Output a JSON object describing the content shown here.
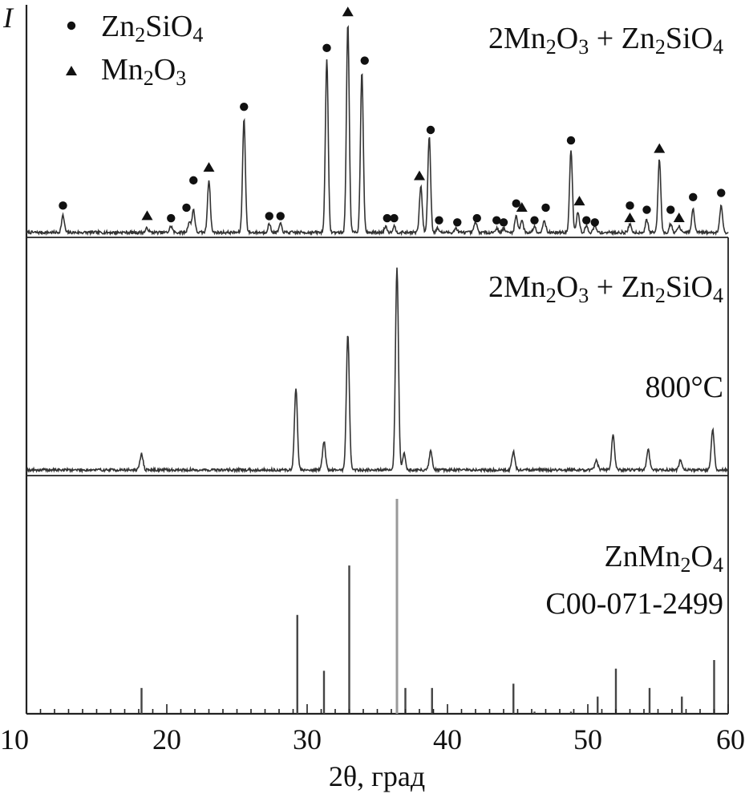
{
  "chart_data": [
    {
      "type": "line",
      "panel": "top",
      "ylabel": "I",
      "label_parts": [
        "2Mn",
        "2",
        "O",
        "3",
        " + Zn",
        "2",
        "SiO",
        "4"
      ],
      "legend": {
        "entries": [
          {
            "marker": "circle",
            "parts": [
              "Zn",
              "2",
              "SiO",
              "4"
            ]
          },
          {
            "marker": "triangle",
            "parts": [
              "Mn",
              "2",
              "O",
              "3"
            ]
          }
        ],
        "placement": "top-left"
      },
      "peaks": [
        {
          "x": 12.6,
          "h": 0.08
        },
        {
          "x": 18.6,
          "h": 0.02
        },
        {
          "x": 20.3,
          "h": 0.03
        },
        {
          "x": 21.6,
          "h": 0.05
        },
        {
          "x": 21.9,
          "h": 0.11
        },
        {
          "x": 23.0,
          "h": 0.25
        },
        {
          "x": 25.5,
          "h": 0.54
        },
        {
          "x": 27.3,
          "h": 0.04
        },
        {
          "x": 28.1,
          "h": 0.04
        },
        {
          "x": 31.4,
          "h": 0.83
        },
        {
          "x": 32.9,
          "h": 1.0
        },
        {
          "x": 33.9,
          "h": 0.77
        },
        {
          "x": 35.6,
          "h": 0.03
        },
        {
          "x": 36.2,
          "h": 0.03
        },
        {
          "x": 38.1,
          "h": 0.22
        },
        {
          "x": 38.7,
          "h": 0.46
        },
        {
          "x": 39.3,
          "h": 0.02
        },
        {
          "x": 40.6,
          "h": 0.02
        },
        {
          "x": 42.0,
          "h": 0.05
        },
        {
          "x": 43.5,
          "h": 0.02
        },
        {
          "x": 44.0,
          "h": 0.02
        },
        {
          "x": 44.9,
          "h": 0.08
        },
        {
          "x": 45.3,
          "h": 0.06
        },
        {
          "x": 46.2,
          "h": 0.03
        },
        {
          "x": 46.9,
          "h": 0.06
        },
        {
          "x": 48.8,
          "h": 0.39
        },
        {
          "x": 49.3,
          "h": 0.1
        },
        {
          "x": 49.9,
          "h": 0.03
        },
        {
          "x": 50.5,
          "h": 0.03
        },
        {
          "x": 53.0,
          "h": 0.04
        },
        {
          "x": 54.2,
          "h": 0.06
        },
        {
          "x": 55.1,
          "h": 0.35
        },
        {
          "x": 55.9,
          "h": 0.04
        },
        {
          "x": 56.5,
          "h": 0.03
        },
        {
          "x": 57.5,
          "h": 0.11
        },
        {
          "x": 59.5,
          "h": 0.13
        }
      ],
      "markers": [
        {
          "x": 12.6,
          "h": 0.14,
          "type": "circle"
        },
        {
          "x": 18.6,
          "h": 0.09,
          "type": "triangle"
        },
        {
          "x": 20.3,
          "h": 0.08,
          "type": "circle"
        },
        {
          "x": 21.4,
          "h": 0.13,
          "type": "circle"
        },
        {
          "x": 21.9,
          "h": 0.26,
          "type": "circle"
        },
        {
          "x": 23.0,
          "h": 0.32,
          "type": "triangle"
        },
        {
          "x": 25.5,
          "h": 0.61,
          "type": "circle"
        },
        {
          "x": 27.3,
          "h": 0.09,
          "type": "circle"
        },
        {
          "x": 28.1,
          "h": 0.09,
          "type": "circle"
        },
        {
          "x": 31.4,
          "h": 0.89,
          "type": "circle"
        },
        {
          "x": 32.9,
          "h": 1.06,
          "type": "triangle"
        },
        {
          "x": 34.1,
          "h": 0.83,
          "type": "circle"
        },
        {
          "x": 35.7,
          "h": 0.08,
          "type": "circle"
        },
        {
          "x": 36.2,
          "h": 0.08,
          "type": "circle"
        },
        {
          "x": 38.0,
          "h": 0.28,
          "type": "triangle"
        },
        {
          "x": 38.8,
          "h": 0.5,
          "type": "circle"
        },
        {
          "x": 39.4,
          "h": 0.07,
          "type": "circle"
        },
        {
          "x": 40.7,
          "h": 0.06,
          "type": "circle"
        },
        {
          "x": 42.1,
          "h": 0.08,
          "type": "circle"
        },
        {
          "x": 43.5,
          "h": 0.07,
          "type": "circle"
        },
        {
          "x": 44.0,
          "h": 0.06,
          "type": "circle"
        },
        {
          "x": 44.9,
          "h": 0.15,
          "type": "circle"
        },
        {
          "x": 45.3,
          "h": 0.13,
          "type": "triangle"
        },
        {
          "x": 46.2,
          "h": 0.07,
          "type": "circle"
        },
        {
          "x": 47.0,
          "h": 0.13,
          "type": "circle"
        },
        {
          "x": 48.8,
          "h": 0.45,
          "type": "circle"
        },
        {
          "x": 49.4,
          "h": 0.16,
          "type": "triangle"
        },
        {
          "x": 49.9,
          "h": 0.07,
          "type": "circle"
        },
        {
          "x": 50.5,
          "h": 0.06,
          "type": "circle"
        },
        {
          "x": 53.0,
          "h": 0.08,
          "type": "triangle"
        },
        {
          "x": 53.0,
          "h": 0.14,
          "type": "circle"
        },
        {
          "x": 54.2,
          "h": 0.12,
          "type": "circle"
        },
        {
          "x": 55.1,
          "h": 0.41,
          "type": "triangle"
        },
        {
          "x": 55.9,
          "h": 0.12,
          "type": "circle"
        },
        {
          "x": 56.5,
          "h": 0.08,
          "type": "triangle"
        },
        {
          "x": 57.5,
          "h": 0.18,
          "type": "circle"
        },
        {
          "x": 59.5,
          "h": 0.2,
          "type": "circle"
        }
      ]
    },
    {
      "type": "line",
      "panel": "middle",
      "label_parts": [
        "2Mn",
        "2",
        "O",
        "3",
        " + Zn",
        "2",
        "SiO",
        "4"
      ],
      "label2": "800°C",
      "peaks": [
        {
          "x": 18.2,
          "h": 0.08
        },
        {
          "x": 29.2,
          "h": 0.4
        },
        {
          "x": 31.2,
          "h": 0.14
        },
        {
          "x": 32.9,
          "h": 0.67
        },
        {
          "x": 36.4,
          "h": 1.0
        },
        {
          "x": 36.9,
          "h": 0.08
        },
        {
          "x": 38.8,
          "h": 0.09
        },
        {
          "x": 44.7,
          "h": 0.09
        },
        {
          "x": 50.6,
          "h": 0.05
        },
        {
          "x": 51.8,
          "h": 0.17
        },
        {
          "x": 54.3,
          "h": 0.1
        },
        {
          "x": 56.6,
          "h": 0.05
        },
        {
          "x": 58.9,
          "h": 0.2
        }
      ]
    },
    {
      "type": "bar",
      "panel": "bottom",
      "label_parts": [
        "ZnMn",
        "2",
        "O",
        "4"
      ],
      "label2": "C00-071-2499",
      "lines": [
        {
          "x": 18.2,
          "h": 0.12
        },
        {
          "x": 29.3,
          "h": 0.46
        },
        {
          "x": 31.2,
          "h": 0.2
        },
        {
          "x": 33.0,
          "h": 0.69
        },
        {
          "x": 36.4,
          "h": 1.0
        },
        {
          "x": 37.0,
          "h": 0.12
        },
        {
          "x": 38.9,
          "h": 0.12
        },
        {
          "x": 44.7,
          "h": 0.14
        },
        {
          "x": 46.2,
          "h": 0.01
        },
        {
          "x": 48.8,
          "h": 0.01
        },
        {
          "x": 50.7,
          "h": 0.08
        },
        {
          "x": 52.0,
          "h": 0.21
        },
        {
          "x": 54.4,
          "h": 0.12
        },
        {
          "x": 56.7,
          "h": 0.08
        },
        {
          "x": 59.0,
          "h": 0.25
        }
      ]
    }
  ],
  "x_axis": {
    "xlim": [
      10,
      60
    ],
    "ticks": [
      10,
      20,
      30,
      40,
      50,
      60
    ],
    "tick_labels": [
      "10",
      "20",
      "30",
      "40",
      "50",
      "60"
    ],
    "title": "2θ, град"
  }
}
